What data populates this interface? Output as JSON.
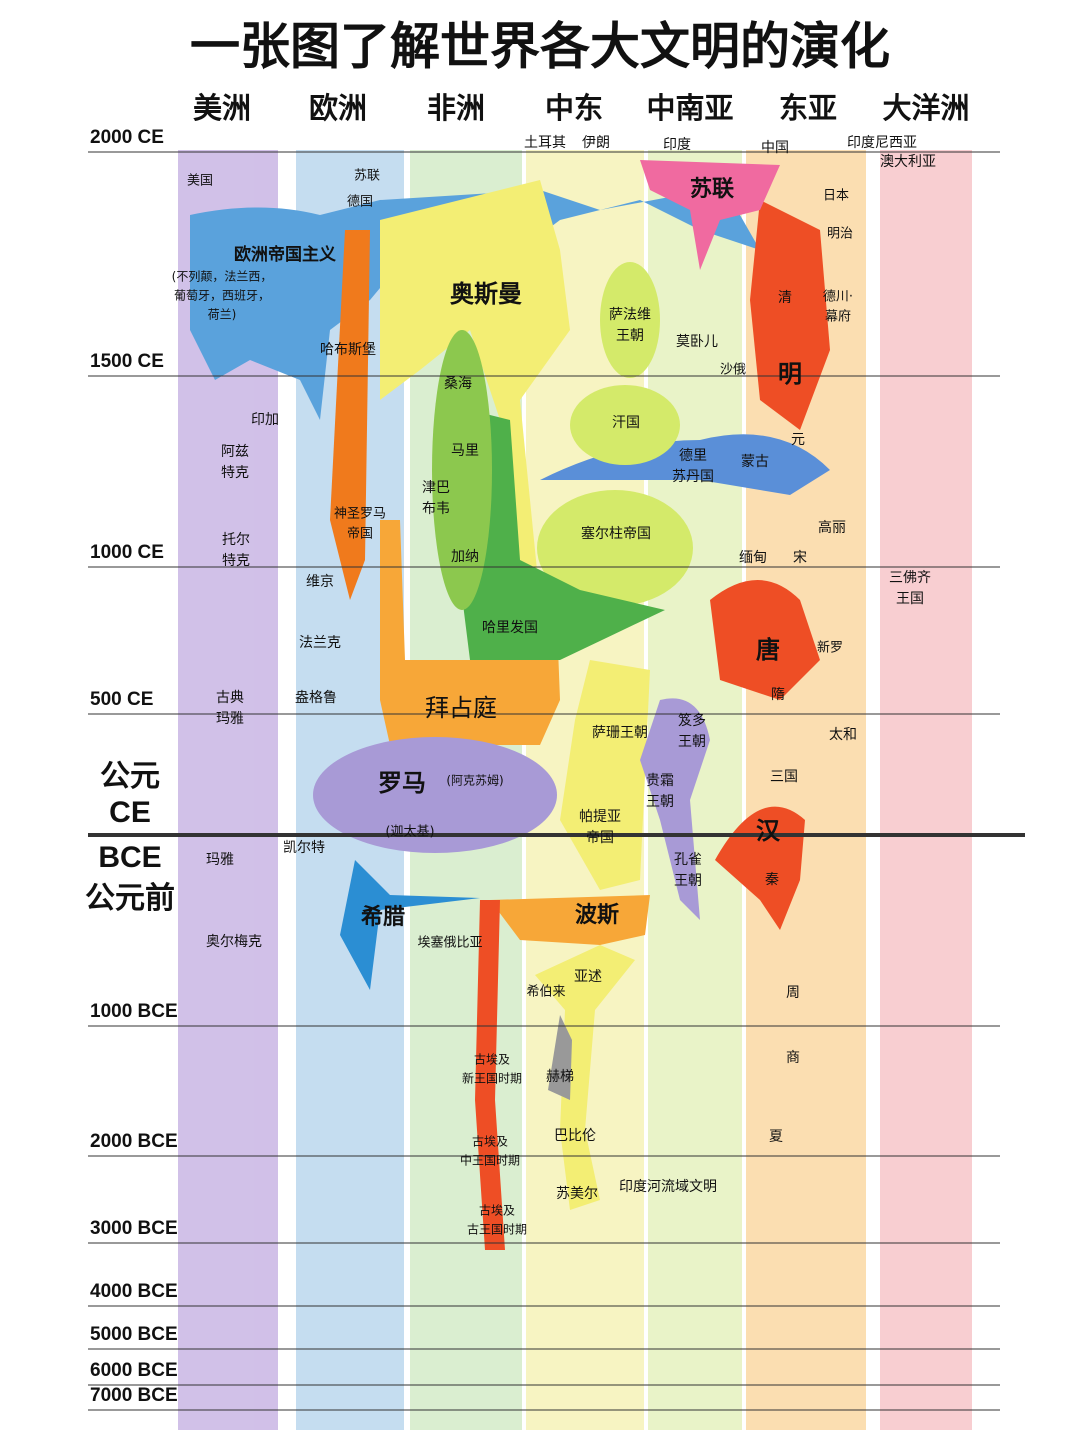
{
  "title": "一张图了解世界各大文明的演化",
  "regions": [
    "美洲",
    "欧洲",
    "非洲",
    "中东",
    "中南亚",
    "东亚",
    "大洋洲"
  ],
  "time_labels": [
    "2000 CE",
    "1500 CE",
    "1000 CE",
    "500 CE",
    "1000 BCE",
    "2000 BCE",
    "3000 BCE",
    "4000 BCE",
    "5000 BCE",
    "6000 BCE",
    "7000 BCE"
  ],
  "era": {
    "ce_cn": "公元",
    "ce": "CE",
    "bce": "BCE",
    "bce_cn": "公元前"
  },
  "modern_countries": [
    "土耳其",
    "伊朗",
    "印度",
    "中国",
    "印度尼西亚",
    "澳大利亚"
  ],
  "civilizations": [
    {
      "lines": [
        "美国"
      ]
    },
    {
      "lines": [
        "苏联"
      ]
    },
    {
      "lines": [
        "德国"
      ]
    },
    {
      "lines": [
        "苏联"
      ]
    },
    {
      "lines": [
        "日本"
      ]
    },
    {
      "lines": [
        "明治"
      ]
    },
    {
      "lines": [
        "欧洲帝国主义"
      ]
    },
    {
      "lines": [
        "(不列颠，法兰西，",
        "葡萄牙，西班牙，",
        "荷兰)"
      ]
    },
    {
      "lines": [
        "奥斯曼"
      ]
    },
    {
      "lines": [
        "哈布斯堡"
      ]
    },
    {
      "lines": [
        "萨法维",
        "王朝"
      ]
    },
    {
      "lines": [
        "莫卧儿"
      ]
    },
    {
      "lines": [
        "清"
      ]
    },
    {
      "lines": [
        "德川·",
        "幕府"
      ]
    },
    {
      "lines": [
        "明"
      ]
    },
    {
      "lines": [
        "沙俄"
      ]
    },
    {
      "lines": [
        "桑海"
      ]
    },
    {
      "lines": [
        "印加"
      ]
    },
    {
      "lines": [
        "汗国"
      ]
    },
    {
      "lines": [
        "元"
      ]
    },
    {
      "lines": [
        "马里"
      ]
    },
    {
      "lines": [
        "阿兹",
        "特克"
      ]
    },
    {
      "lines": [
        "德里",
        "苏丹国"
      ]
    },
    {
      "lines": [
        "蒙古"
      ]
    },
    {
      "lines": [
        "津巴",
        "布韦"
      ]
    },
    {
      "lines": [
        "神圣罗马",
        "帝国"
      ]
    },
    {
      "lines": [
        "高丽"
      ]
    },
    {
      "lines": [
        "托尔",
        "特克"
      ]
    },
    {
      "lines": [
        "加纳"
      ]
    },
    {
      "lines": [
        "塞尔柱帝国"
      ]
    },
    {
      "lines": [
        "缅甸"
      ]
    },
    {
      "lines": [
        "宋"
      ]
    },
    {
      "lines": [
        "维京"
      ]
    },
    {
      "lines": [
        "三佛齐",
        "王国"
      ]
    },
    {
      "lines": [
        "哈里发国"
      ]
    },
    {
      "lines": [
        "法兰克"
      ]
    },
    {
      "lines": [
        "唐"
      ]
    },
    {
      "lines": [
        "新罗"
      ]
    },
    {
      "lines": [
        "古典",
        "玛雅"
      ]
    },
    {
      "lines": [
        "盎格鲁"
      ]
    },
    {
      "lines": [
        "拜占庭"
      ]
    },
    {
      "lines": [
        "隋"
      ]
    },
    {
      "lines": [
        "萨珊王朝"
      ]
    },
    {
      "lines": [
        "笈多",
        "王朝"
      ]
    },
    {
      "lines": [
        "太和"
      ]
    },
    {
      "lines": [
        "罗马"
      ]
    },
    {
      "lines": [
        "(阿克苏姆)"
      ]
    },
    {
      "lines": [
        "贵霜",
        "王朝"
      ]
    },
    {
      "lines": [
        "三国"
      ]
    },
    {
      "lines": [
        "帕提亚",
        "帝国"
      ]
    },
    {
      "lines": [
        "汉"
      ]
    },
    {
      "lines": [
        "(迦太基)"
      ]
    },
    {
      "lines": [
        "凯尔特"
      ]
    },
    {
      "lines": [
        "玛雅"
      ]
    },
    {
      "lines": [
        "孔雀",
        "王朝"
      ]
    },
    {
      "lines": [
        "秦"
      ]
    },
    {
      "lines": [
        "希腊"
      ]
    },
    {
      "lines": [
        "波斯"
      ]
    },
    {
      "lines": [
        "奥尔梅克"
      ]
    },
    {
      "lines": [
        "埃塞俄比亚"
      ]
    },
    {
      "lines": [
        "亚述"
      ]
    },
    {
      "lines": [
        "希伯来"
      ]
    },
    {
      "lines": [
        "周"
      ]
    },
    {
      "lines": [
        "商"
      ]
    },
    {
      "lines": [
        "古埃及",
        "新王国时期"
      ]
    },
    {
      "lines": [
        "赫梯"
      ]
    },
    {
      "lines": [
        "巴比伦"
      ]
    },
    {
      "lines": [
        "夏"
      ]
    },
    {
      "lines": [
        "古埃及",
        "中王国时期"
      ]
    },
    {
      "lines": [
        "苏美尔"
      ]
    },
    {
      "lines": [
        "印度河流域文明"
      ]
    },
    {
      "lines": [
        "古埃及",
        "古王国时期"
      ]
    }
  ]
}
